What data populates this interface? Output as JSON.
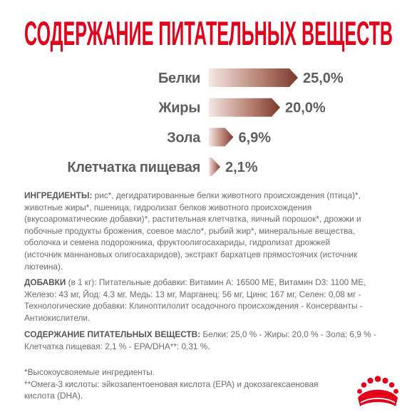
{
  "colors": {
    "title": "#E2001A",
    "chart_label": "#5e5e5e",
    "bar_light": "#f4e7e3",
    "bar_mid": "#bb8679",
    "bar_dark": "#7a392b",
    "logo": "#E2001A"
  },
  "chart_data": {
    "type": "bar",
    "orientation": "horizontal",
    "title": "СОДЕРЖАНИЕ ПИТАТЕЛЬНЫХ ВЕЩЕСТВ",
    "categories": [
      "Белки",
      "Жиры",
      "Зола",
      "Клетчатка пищевая"
    ],
    "values": [
      25.0,
      20.0,
      6.9,
      2.1
    ],
    "value_labels": [
      "25,0%",
      "20,0%",
      "6,9%",
      "2,1%"
    ],
    "grid": false
  },
  "ingredients": {
    "label": "ИНГРЕДИЕНТЫ:",
    "text": "рис*, дегидратированные белки животного происхождения (птица)*,\nживотные жиры*, пшеница, гидролизат белков животного происхождения\n(вкусоароматические добавки)*, растительная клетчатка, яичный порошок*, дрожжи и\nпобочные продукты брожения, соевое масло*, рыбий жир*, минеральные вещества,\nоболочка и семена подорожника, фруктоолигосахариды, гидролизат дрожжей\n(источник маннановых олигосахаридов), экстракт бархатцев прямостоячих (источник\nлютеина)."
  },
  "additives": {
    "label": "ДОБАВКИ",
    "qualifier": "(в 1 кг):",
    "text": "Питательные добавки: Витамин А: 16500 МЕ, Витамин D3: 1100 МЕ,\nЖелезо: 43 мг, Йод: 4,3 мг, Медь: 13 мг, Марганец: 56 мг, Цинк: 167 мг, Селен: 0,08 мг -\nТехнологические добавки: Клиноптилолит осадочного происхождения - Консерванты -\nАнтиокислители."
  },
  "nutrients": {
    "label": "СОДЕРЖАНИЕ ПИТАТЕЛЬНЫХ ВЕЩЕСТВ:",
    "text": "Белки: 25,0 % - Жиры: 20,0 % - Зола: 6,9 % -\nКлетчатка пищевая: 2,1 % - EPA/DHA**: 0,31 %."
  },
  "footnotes": [
    "*Высокоусвояемые ингредиенты.",
    "**Омега-3 кислоты: эйкозапентоеновая кислота (EPA) и докозагексаеновая\nкислота (DHA)."
  ],
  "logo": {
    "icon": "royal-canin-crown-icon"
  }
}
